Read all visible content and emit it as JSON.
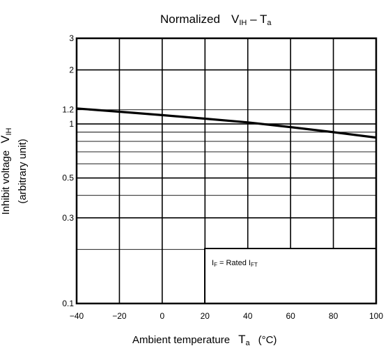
{
  "chart_data": {
    "type": "line",
    "title": {
      "prefix": "Normalized",
      "var": "V",
      "var_sub": "IH",
      "sep": "–",
      "x_var": "T",
      "x_var_sub": "a"
    },
    "xlabel": {
      "text": "Ambient temperature",
      "var": "T",
      "var_sub": "a",
      "unit": "(°C)"
    },
    "ylabel": {
      "line1": "Inhibit voltage",
      "var": "V",
      "var_sub": "IH",
      "line2": "(arbitrary unit)"
    },
    "x_scale": "linear",
    "y_scale": "log",
    "xlim": [
      -40,
      100
    ],
    "ylim": [
      0.1,
      3
    ],
    "x_ticks": [
      -40,
      -20,
      0,
      20,
      40,
      60,
      80,
      100
    ],
    "x_tick_labels": [
      "−40",
      "−20",
      "0",
      "20",
      "40",
      "60",
      "80",
      "100"
    ],
    "y_ticks": [
      0.1,
      0.3,
      0.5,
      1,
      1.2,
      2,
      3
    ],
    "y_tick_labels": [
      "0.1",
      "0.3",
      "0.5",
      "1",
      "1.2",
      "2",
      "3"
    ],
    "y_major_grid": [
      0.3,
      0.5,
      1,
      2
    ],
    "y_minor_grid": [
      0.2,
      0.4,
      0.6,
      0.7,
      0.8,
      0.9,
      1.2
    ],
    "grid": true,
    "series": [
      {
        "x": [
          -40,
          -20,
          0,
          20,
          40,
          60,
          80,
          100
        ],
        "y": [
          1.22,
          1.17,
          1.12,
          1.07,
          1.02,
          0.96,
          0.9,
          0.84
        ]
      }
    ],
    "annotation": {
      "prefix": "I",
      "prefix_sub": "F",
      "mid": " = Rated I",
      "suffix_sub": "FT"
    }
  }
}
